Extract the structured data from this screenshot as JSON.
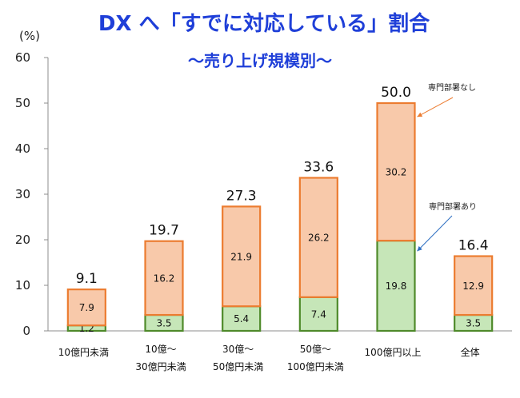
{
  "chart_data": {
    "type": "bar",
    "stacked": true,
    "title": "DX へ「すでに対応している」割合",
    "subtitle": "～売り上げ規模別～",
    "unit_label": "(%)",
    "categories": [
      [
        "10億円未満"
      ],
      [
        "10億～",
        "30億円未満"
      ],
      [
        "30億～",
        "50億円未満"
      ],
      [
        "50億～",
        "100億円未満"
      ],
      [
        "100億円以上"
      ],
      [
        "全体"
      ]
    ],
    "series": [
      {
        "name": "専門部署あり",
        "color": "#c6e6b8",
        "edge": "#4f8a2b",
        "values": [
          1.2,
          3.5,
          5.4,
          7.4,
          19.8,
          3.5
        ]
      },
      {
        "name": "専門部署なし",
        "color": "#f8c9aa",
        "edge": "#ec7c30",
        "values": [
          7.9,
          16.2,
          21.9,
          26.2,
          30.2,
          12.9
        ]
      }
    ],
    "totals": [
      "9.1",
      "19.7",
      "27.3",
      "33.6",
      "50.0",
      "16.4"
    ],
    "ylim": [
      0,
      60
    ],
    "yticks": [
      0,
      10,
      20,
      30,
      40,
      50,
      60
    ],
    "grid": false,
    "annotations": [
      {
        "text": "専門部署なし",
        "series": 1,
        "category": 4
      },
      {
        "text": "専門部署あり",
        "series": 0,
        "category": 4
      }
    ]
  }
}
